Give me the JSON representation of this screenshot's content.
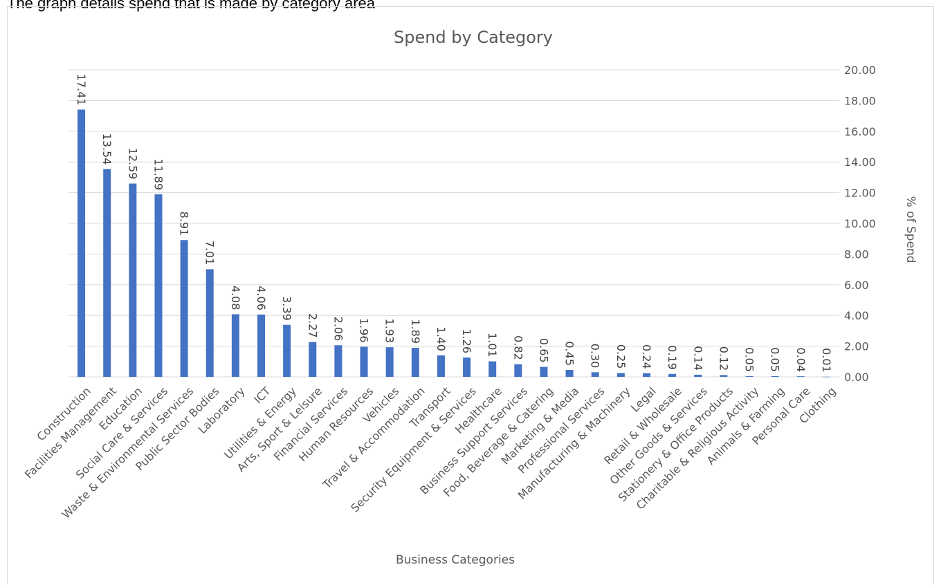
{
  "caption": "The graph details spend that is made by category area",
  "colors": {
    "bar": "#4472c4",
    "grid": "#d9d9d9",
    "text": "#595959"
  },
  "chart_data": {
    "type": "bar",
    "title": "Spend by Category",
    "xlabel": "Business Categories",
    "ylabel": "% of Spend",
    "y_axis_side": "right",
    "ylim": [
      0,
      20
    ],
    "y_ticks": [
      "0.00",
      "2.00",
      "4.00",
      "6.00",
      "8.00",
      "10.00",
      "12.00",
      "14.00",
      "16.00",
      "18.00",
      "20.00"
    ],
    "grid": true,
    "categories": [
      "Construction",
      "Facilities Management",
      "Education",
      "Social Care & Services",
      "Waste & Environmental Services",
      "Public Sector Bodies",
      "Laboratory",
      "ICT",
      "Utilities & Energy",
      "Arts, Sport & Leisure",
      "Financial Services",
      "Human Resources",
      "Vehicles",
      "Travel & Accommodation",
      "Transport",
      "Security Equipment & Services",
      "Healthcare",
      "Business Support Services",
      "Food, Beverage & Catering",
      "Marketing & Media",
      "Professional Services",
      "Manufacturing & Machinery",
      "Legal",
      "Retail & Wholesale",
      "Other Goods & Services",
      "Stationery & Office Products",
      "Charitable & Religious Activity",
      "Animals & Farming",
      "Personal Care",
      "Clothing"
    ],
    "values": [
      17.41,
      13.54,
      12.59,
      11.89,
      8.91,
      7.01,
      4.08,
      4.06,
      3.39,
      2.27,
      2.06,
      1.96,
      1.93,
      1.89,
      1.4,
      1.26,
      1.01,
      0.82,
      0.65,
      0.45,
      0.3,
      0.25,
      0.24,
      0.19,
      0.14,
      0.12,
      0.05,
      0.05,
      0.04,
      0.01
    ],
    "value_labels": [
      "17.41",
      "13.54",
      "12.59",
      "11.89",
      "8.91",
      "7.01",
      "4.08",
      "4.06",
      "3.39",
      "2.27",
      "2.06",
      "1.96",
      "1.93",
      "1.89",
      "1.40",
      "1.26",
      "1.01",
      "0.82",
      "0.65",
      "0.45",
      "0.30",
      "0.25",
      "0.24",
      "0.19",
      "0.14",
      "0.12",
      "0.05",
      "0.05",
      "0.04",
      "0.01"
    ]
  }
}
